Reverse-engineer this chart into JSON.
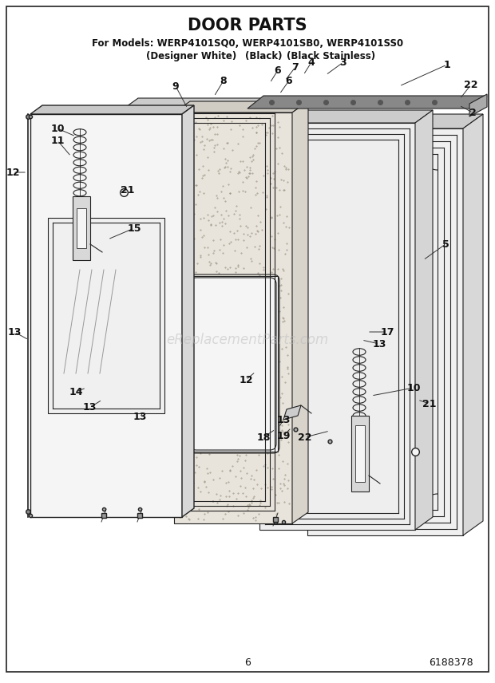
{
  "title": "DOOR PARTS",
  "subtitle_line1": "For Models: WERP4101SQ0, WERP4101SB0, WERP4101SS0",
  "subtitle_line2_part1": "(Designer White)",
  "subtitle_line2_part2": "(Black)",
  "subtitle_line2_part3": "(Black Stainless)",
  "page_number": "6",
  "part_number": "6188378",
  "background_color": "#ffffff",
  "border_color": "#000000",
  "title_fontsize": 15,
  "subtitle_fontsize": 8.5,
  "watermark_text": "eReplacementParts.com",
  "watermark_color": "#bbbbbb",
  "lc": "#222222",
  "lw": 0.8
}
